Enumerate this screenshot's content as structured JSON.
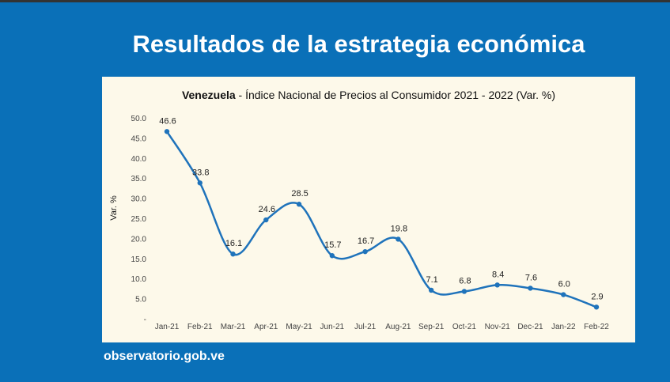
{
  "slide": {
    "title": "Resultados de la estrategia económica",
    "footer": "observatorio.gob.ve"
  },
  "chart_data": {
    "type": "line",
    "title_bold": "Venezuela",
    "title_rest": " - Índice Nacional de Precios al Consumidor 2021 - 2022 (Var. %)",
    "ylabel": "Var. %",
    "xlabel": "",
    "ylim": [
      0,
      50
    ],
    "yticks": [
      "-",
      "5.0",
      "10.0",
      "15.0",
      "20.0",
      "25.0",
      "30.0",
      "35.0",
      "40.0",
      "45.0",
      "50.0"
    ],
    "categories": [
      "Jan-21",
      "Feb-21",
      "Mar-21",
      "Apr-21",
      "May-21",
      "Jun-21",
      "Jul-21",
      "Aug-21",
      "Sep-21",
      "Oct-21",
      "Nov-21",
      "Dec-21",
      "Jan-22",
      "Feb-22"
    ],
    "values": [
      46.6,
      33.8,
      16.1,
      24.6,
      28.5,
      15.7,
      16.7,
      19.8,
      7.1,
      6.8,
      8.4,
      7.6,
      6.0,
      2.9
    ],
    "value_labels": [
      "46.6",
      "33.8",
      "16.1",
      "24.6",
      "28.5",
      "15.7",
      "16.7",
      "19.8",
      "7.1",
      "6.8",
      "8.4",
      "7.6",
      "6.0",
      "2.9"
    ],
    "grid": false,
    "legend": "none",
    "line_color": "#1f73bb"
  }
}
